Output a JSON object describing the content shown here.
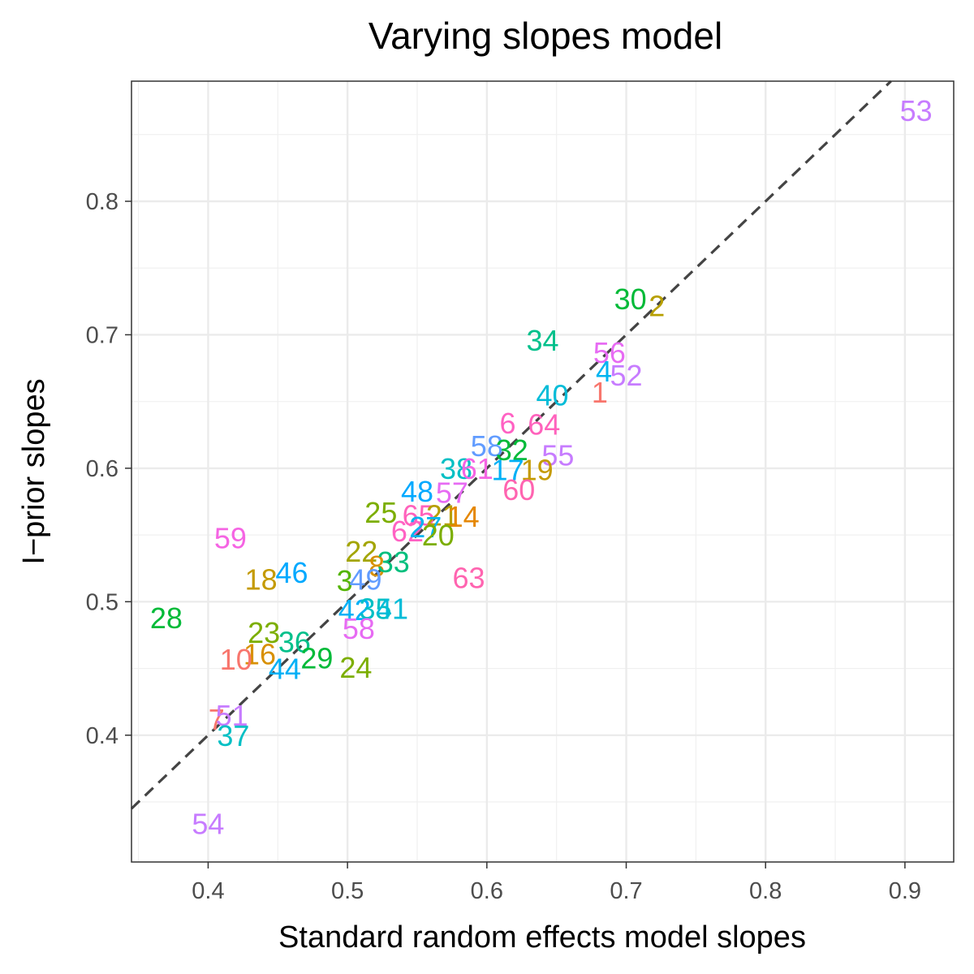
{
  "chart_data": {
    "type": "scatter",
    "title": "Varying slopes model",
    "xlabel": "Standard random effects model slopes",
    "ylabel": "I−prior slopes",
    "xlim": [
      0.345,
      0.935
    ],
    "ylim": [
      0.305,
      0.89
    ],
    "xticks": [
      0.4,
      0.5,
      0.6,
      0.7,
      0.8,
      0.9
    ],
    "xtick_labels": [
      "0.4",
      "0.5",
      "0.6",
      "0.7",
      "0.8",
      "0.9"
    ],
    "yticks": [
      0.4,
      0.5,
      0.6,
      0.7,
      0.8
    ],
    "ytick_labels": [
      "0.4",
      "0.5",
      "0.6",
      "0.7",
      "0.8"
    ],
    "grid": true,
    "reference_line": {
      "slope": 1,
      "intercept": 0,
      "style": "dashed",
      "color": "#444444"
    },
    "points": [
      {
        "label": "53",
        "x": 0.908,
        "y": 0.868,
        "color": "#C77CFF"
      },
      {
        "label": "30",
        "x": 0.703,
        "y": 0.727,
        "color": "#00BA38"
      },
      {
        "label": "2",
        "x": 0.722,
        "y": 0.722,
        "color": "#B79F00"
      },
      {
        "label": "34",
        "x": 0.64,
        "y": 0.696,
        "color": "#00C08B"
      },
      {
        "label": "56",
        "x": 0.688,
        "y": 0.687,
        "color": "#E76BF3"
      },
      {
        "label": "4",
        "x": 0.684,
        "y": 0.673,
        "color": "#00B4F0"
      },
      {
        "label": "52",
        "x": 0.7,
        "y": 0.67,
        "color": "#C77CFF"
      },
      {
        "label": "1",
        "x": 0.681,
        "y": 0.657,
        "color": "#F8766D"
      },
      {
        "label": "40",
        "x": 0.647,
        "y": 0.655,
        "color": "#00BCD8"
      },
      {
        "label": "6",
        "x": 0.615,
        "y": 0.634,
        "color": "#FF61C3"
      },
      {
        "label": "64",
        "x": 0.641,
        "y": 0.633,
        "color": "#FF62BC"
      },
      {
        "label": "58",
        "x": 0.6,
        "y": 0.617,
        "color": "#619CFF"
      },
      {
        "label": "32",
        "x": 0.618,
        "y": 0.614,
        "color": "#00BA38"
      },
      {
        "label": "55",
        "x": 0.651,
        "y": 0.61,
        "color": "#C77CFF"
      },
      {
        "label": "38",
        "x": 0.578,
        "y": 0.6,
        "color": "#00BFC4"
      },
      {
        "label": "61",
        "x": 0.593,
        "y": 0.6,
        "color": "#F564E3"
      },
      {
        "label": "17",
        "x": 0.615,
        "y": 0.599,
        "color": "#00B0F6"
      },
      {
        "label": "19",
        "x": 0.636,
        "y": 0.599,
        "color": "#C49A00"
      },
      {
        "label": "60",
        "x": 0.623,
        "y": 0.584,
        "color": "#FF64B0"
      },
      {
        "label": "48",
        "x": 0.55,
        "y": 0.583,
        "color": "#00A9FF"
      },
      {
        "label": "57",
        "x": 0.575,
        "y": 0.582,
        "color": "#E76BF3"
      },
      {
        "label": "25",
        "x": 0.524,
        "y": 0.567,
        "color": "#7CAE00"
      },
      {
        "label": "65",
        "x": 0.551,
        "y": 0.565,
        "color": "#FF62BC"
      },
      {
        "label": "21",
        "x": 0.568,
        "y": 0.565,
        "color": "#B79F00"
      },
      {
        "label": "14",
        "x": 0.583,
        "y": 0.564,
        "color": "#E58700"
      },
      {
        "label": "62",
        "x": 0.543,
        "y": 0.553,
        "color": "#FF61C3"
      },
      {
        "label": "27",
        "x": 0.556,
        "y": 0.556,
        "color": "#00B4F0"
      },
      {
        "label": "20",
        "x": 0.565,
        "y": 0.55,
        "color": "#7CAE00"
      },
      {
        "label": "59",
        "x": 0.416,
        "y": 0.548,
        "color": "#F564E3"
      },
      {
        "label": "22",
        "x": 0.51,
        "y": 0.538,
        "color": "#A3A500"
      },
      {
        "label": "8",
        "x": 0.521,
        "y": 0.527,
        "color": "#D89000"
      },
      {
        "label": "33",
        "x": 0.533,
        "y": 0.53,
        "color": "#00BF7D"
      },
      {
        "label": "46",
        "x": 0.46,
        "y": 0.522,
        "color": "#00A9FF"
      },
      {
        "label": "18",
        "x": 0.438,
        "y": 0.517,
        "color": "#C49A00"
      },
      {
        "label": "3",
        "x": 0.498,
        "y": 0.516,
        "color": "#53B400"
      },
      {
        "label": "49",
        "x": 0.513,
        "y": 0.517,
        "color": "#619CFF"
      },
      {
        "label": "63",
        "x": 0.587,
        "y": 0.518,
        "color": "#FF64B0"
      },
      {
        "label": "42",
        "x": 0.505,
        "y": 0.494,
        "color": "#00B0F6"
      },
      {
        "label": "35",
        "x": 0.52,
        "y": 0.495,
        "color": "#00BFC4"
      },
      {
        "label": "41",
        "x": 0.532,
        "y": 0.495,
        "color": "#00BCD8"
      },
      {
        "label": "28",
        "x": 0.37,
        "y": 0.488,
        "color": "#00BA38"
      },
      {
        "label": "23",
        "x": 0.44,
        "y": 0.477,
        "color": "#7CAE00"
      },
      {
        "label": "58",
        "x": 0.508,
        "y": 0.48,
        "color": "#E76BF3"
      },
      {
        "label": "36",
        "x": 0.462,
        "y": 0.47,
        "color": "#00C08B"
      },
      {
        "label": "16",
        "x": 0.437,
        "y": 0.461,
        "color": "#D89000"
      },
      {
        "label": "10",
        "x": 0.42,
        "y": 0.457,
        "color": "#F8766D"
      },
      {
        "label": "29",
        "x": 0.478,
        "y": 0.458,
        "color": "#00BA38"
      },
      {
        "label": "24",
        "x": 0.506,
        "y": 0.451,
        "color": "#7CAE00"
      },
      {
        "label": "44",
        "x": 0.455,
        "y": 0.45,
        "color": "#00B0F6"
      },
      {
        "label": "7",
        "x": 0.406,
        "y": 0.412,
        "color": "#F8766D"
      },
      {
        "label": "51",
        "x": 0.417,
        "y": 0.415,
        "color": "#C77CFF"
      },
      {
        "label": "37",
        "x": 0.418,
        "y": 0.4,
        "color": "#00BFC4"
      },
      {
        "label": "54",
        "x": 0.4,
        "y": 0.334,
        "color": "#C77CFF"
      }
    ]
  }
}
